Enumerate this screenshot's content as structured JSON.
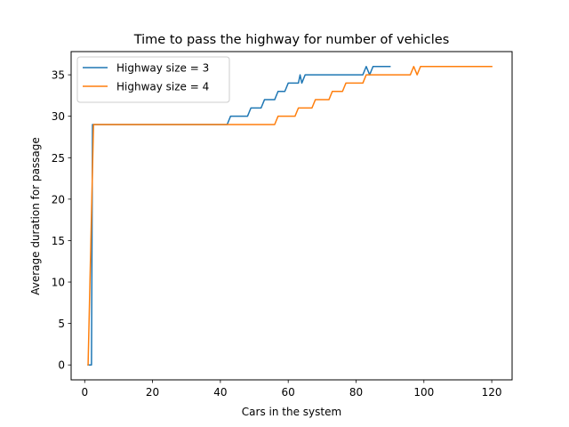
{
  "chart_data": {
    "type": "line",
    "title": "Time to pass the highway for number of vehicles",
    "xlabel": "Cars in the system",
    "ylabel": "Average duration for passage",
    "xlim": [
      -4,
      126
    ],
    "ylim": [
      -1.8,
      37.8
    ],
    "xticks": [
      0,
      20,
      40,
      60,
      80,
      100,
      120
    ],
    "yticks": [
      0,
      5,
      10,
      15,
      20,
      25,
      30,
      35
    ],
    "grid": false,
    "legend_position": "top-left",
    "series": [
      {
        "name": "Highway size = 3",
        "color": "#1f77b4",
        "points": [
          [
            1,
            0
          ],
          [
            2,
            0
          ],
          [
            2.3,
            29
          ],
          [
            42,
            29
          ],
          [
            43,
            30
          ],
          [
            48,
            30
          ],
          [
            49,
            31
          ],
          [
            52,
            31
          ],
          [
            53,
            32
          ],
          [
            56,
            32
          ],
          [
            57,
            33
          ],
          [
            59,
            33
          ],
          [
            60,
            34
          ],
          [
            63,
            34
          ],
          [
            63.5,
            35
          ],
          [
            64,
            34
          ],
          [
            65,
            35
          ],
          [
            82,
            35
          ],
          [
            83,
            36
          ],
          [
            84,
            35
          ],
          [
            85,
            36
          ],
          [
            90,
            36
          ]
        ]
      },
      {
        "name": "Highway size = 4",
        "color": "#ff7f0e",
        "points": [
          [
            1,
            0
          ],
          [
            2.6,
            29
          ],
          [
            56,
            29
          ],
          [
            57,
            30
          ],
          [
            62,
            30
          ],
          [
            63,
            31
          ],
          [
            67,
            31
          ],
          [
            68,
            32
          ],
          [
            72,
            32
          ],
          [
            73,
            33
          ],
          [
            76,
            33
          ],
          [
            77,
            34
          ],
          [
            82,
            34
          ],
          [
            83,
            35
          ],
          [
            96,
            35
          ],
          [
            97,
            36
          ],
          [
            98,
            35
          ],
          [
            99,
            36
          ],
          [
            120,
            36
          ]
        ]
      }
    ]
  }
}
